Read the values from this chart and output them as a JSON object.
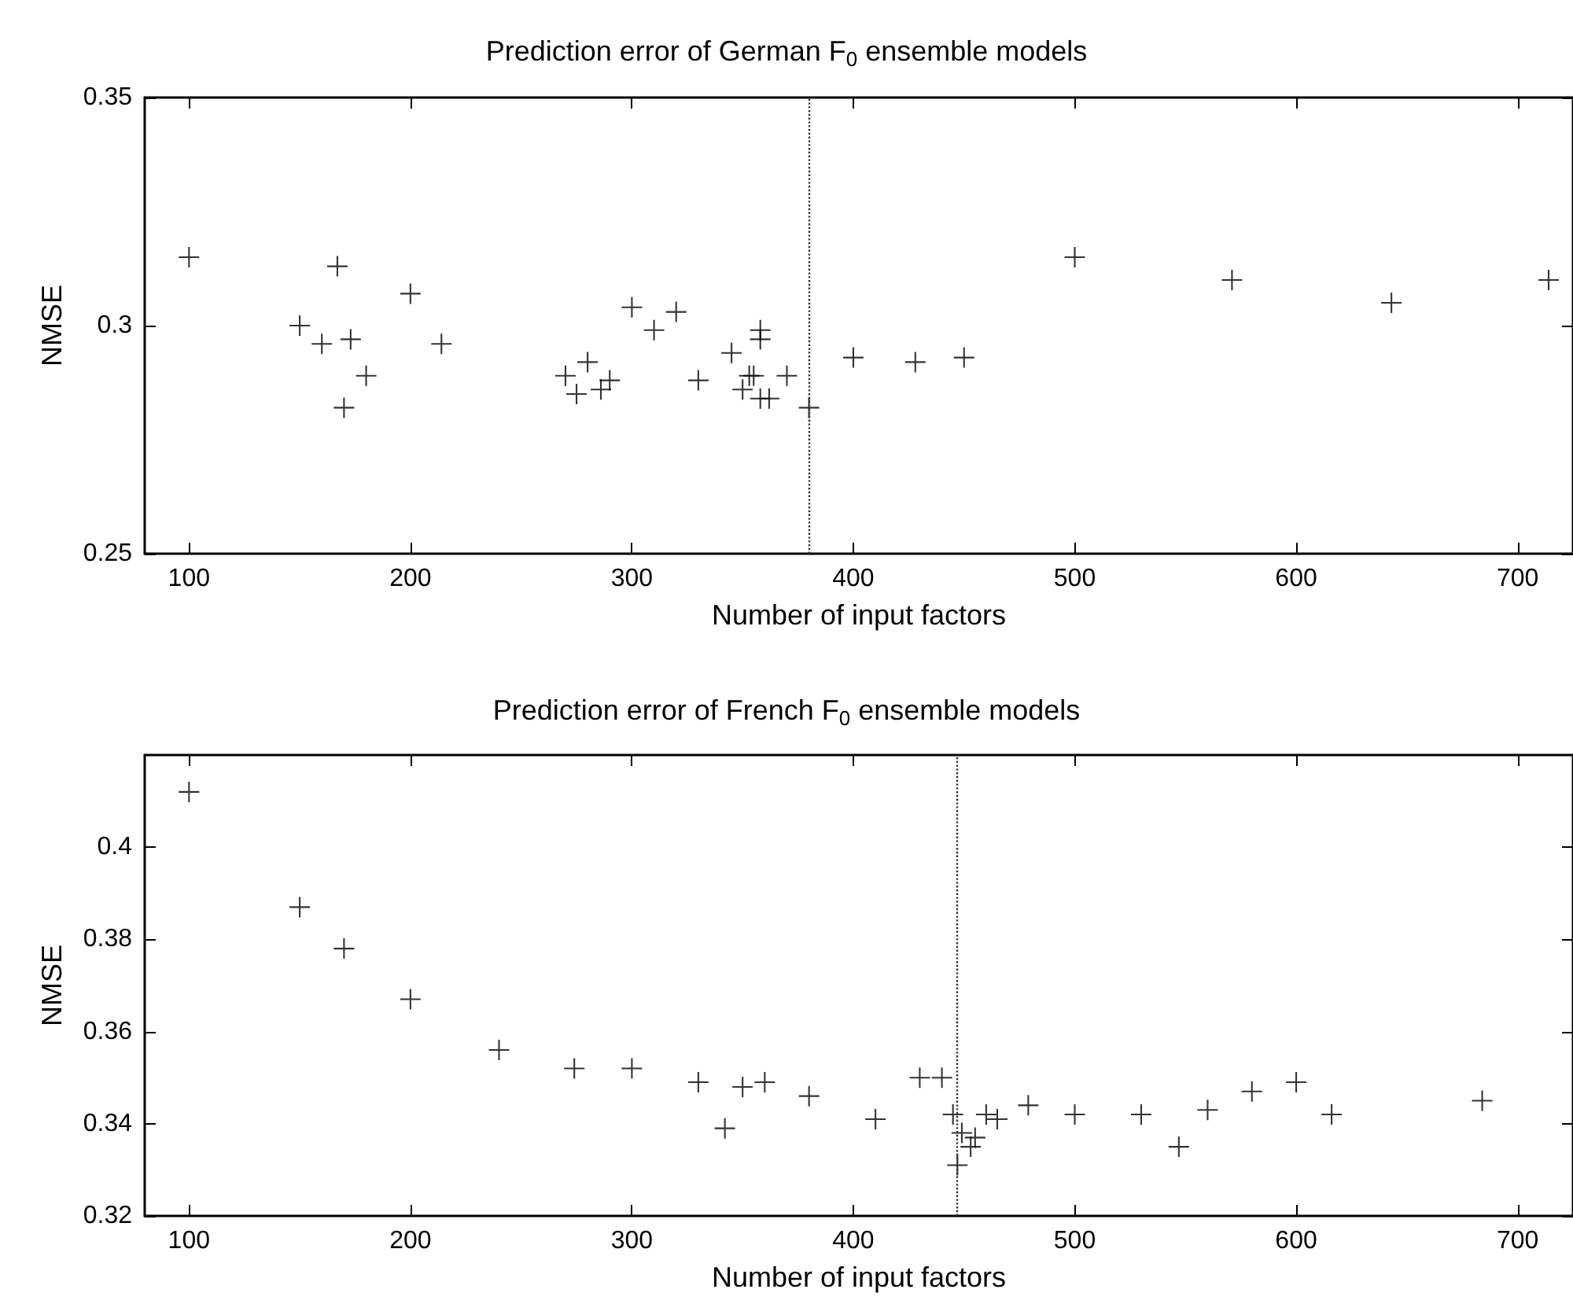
{
  "chart_data": [
    {
      "type": "scatter",
      "title": "Prediction error of German F$_{0}$ ensemble models",
      "xlabel": "Number of input factors",
      "ylabel": "NMSE",
      "x": [
        100,
        167,
        200,
        150,
        160,
        173,
        214,
        180,
        170,
        300,
        310,
        320,
        280,
        270,
        275,
        286,
        290,
        330,
        345,
        358,
        358,
        353,
        355,
        350,
        358,
        362,
        370,
        380,
        400,
        428,
        450,
        500,
        571,
        643,
        714
      ],
      "series": [
        {
          "color": "#000000",
          "values": [
            0.315,
            0.313,
            0.307,
            0.3,
            0.296,
            0.297,
            0.296,
            0.289,
            0.282,
            0.304,
            0.299,
            0.303,
            0.292,
            0.289,
            0.285,
            0.286,
            0.288,
            0.288,
            0.294,
            0.299,
            0.297,
            0.289,
            0.289,
            0.286,
            0.284,
            0.284,
            0.289,
            0.282,
            0.293,
            0.292,
            0.293,
            0.315,
            0.31,
            0.305,
            0.31
          ]
        }
      ],
      "xlim": [
        80,
        725
      ],
      "xticks": [
        100,
        200,
        300,
        400,
        500,
        600,
        700
      ],
      "ylim": [
        0.25,
        0.35
      ],
      "yticks": [
        0.25,
        0.3,
        0.35
      ],
      "ref_lines": [
        {
          "axis": "x",
          "value": 380,
          "color": "#333333",
          "line_style": "dotted"
        }
      ],
      "marker": "cross",
      "grid": false
    },
    {
      "type": "scatter",
      "title": "Prediction error of French F$_{0}$ ensemble models",
      "xlabel": "Number of input factors",
      "ylabel": "NMSE",
      "x": [
        100,
        150,
        170,
        200,
        240,
        274,
        300,
        330,
        342,
        350,
        360,
        380,
        410,
        430,
        440,
        445,
        449,
        455,
        453,
        447,
        460,
        465,
        479,
        500,
        530,
        547,
        560,
        580,
        600,
        616,
        684
      ],
      "series": [
        {
          "color": "#000000",
          "values": [
            0.412,
            0.387,
            0.378,
            0.367,
            0.356,
            0.352,
            0.352,
            0.349,
            0.339,
            0.348,
            0.349,
            0.346,
            0.341,
            0.35,
            0.35,
            0.342,
            0.338,
            0.337,
            0.335,
            0.331,
            0.342,
            0.341,
            0.344,
            0.342,
            0.342,
            0.335,
            0.343,
            0.347,
            0.349,
            0.342,
            0.345
          ]
        }
      ],
      "xlim": [
        80,
        725
      ],
      "xticks": [
        100,
        200,
        300,
        400,
        500,
        600,
        700
      ],
      "ylim": [
        0.32,
        0.42
      ],
      "yticks": [
        0.32,
        0.34,
        0.36,
        0.38,
        0.4
      ],
      "ref_lines": [
        {
          "axis": "x",
          "value": 447,
          "color": "#333333",
          "line_style": "dotted"
        }
      ],
      "marker": "cross",
      "grid": false
    }
  ]
}
